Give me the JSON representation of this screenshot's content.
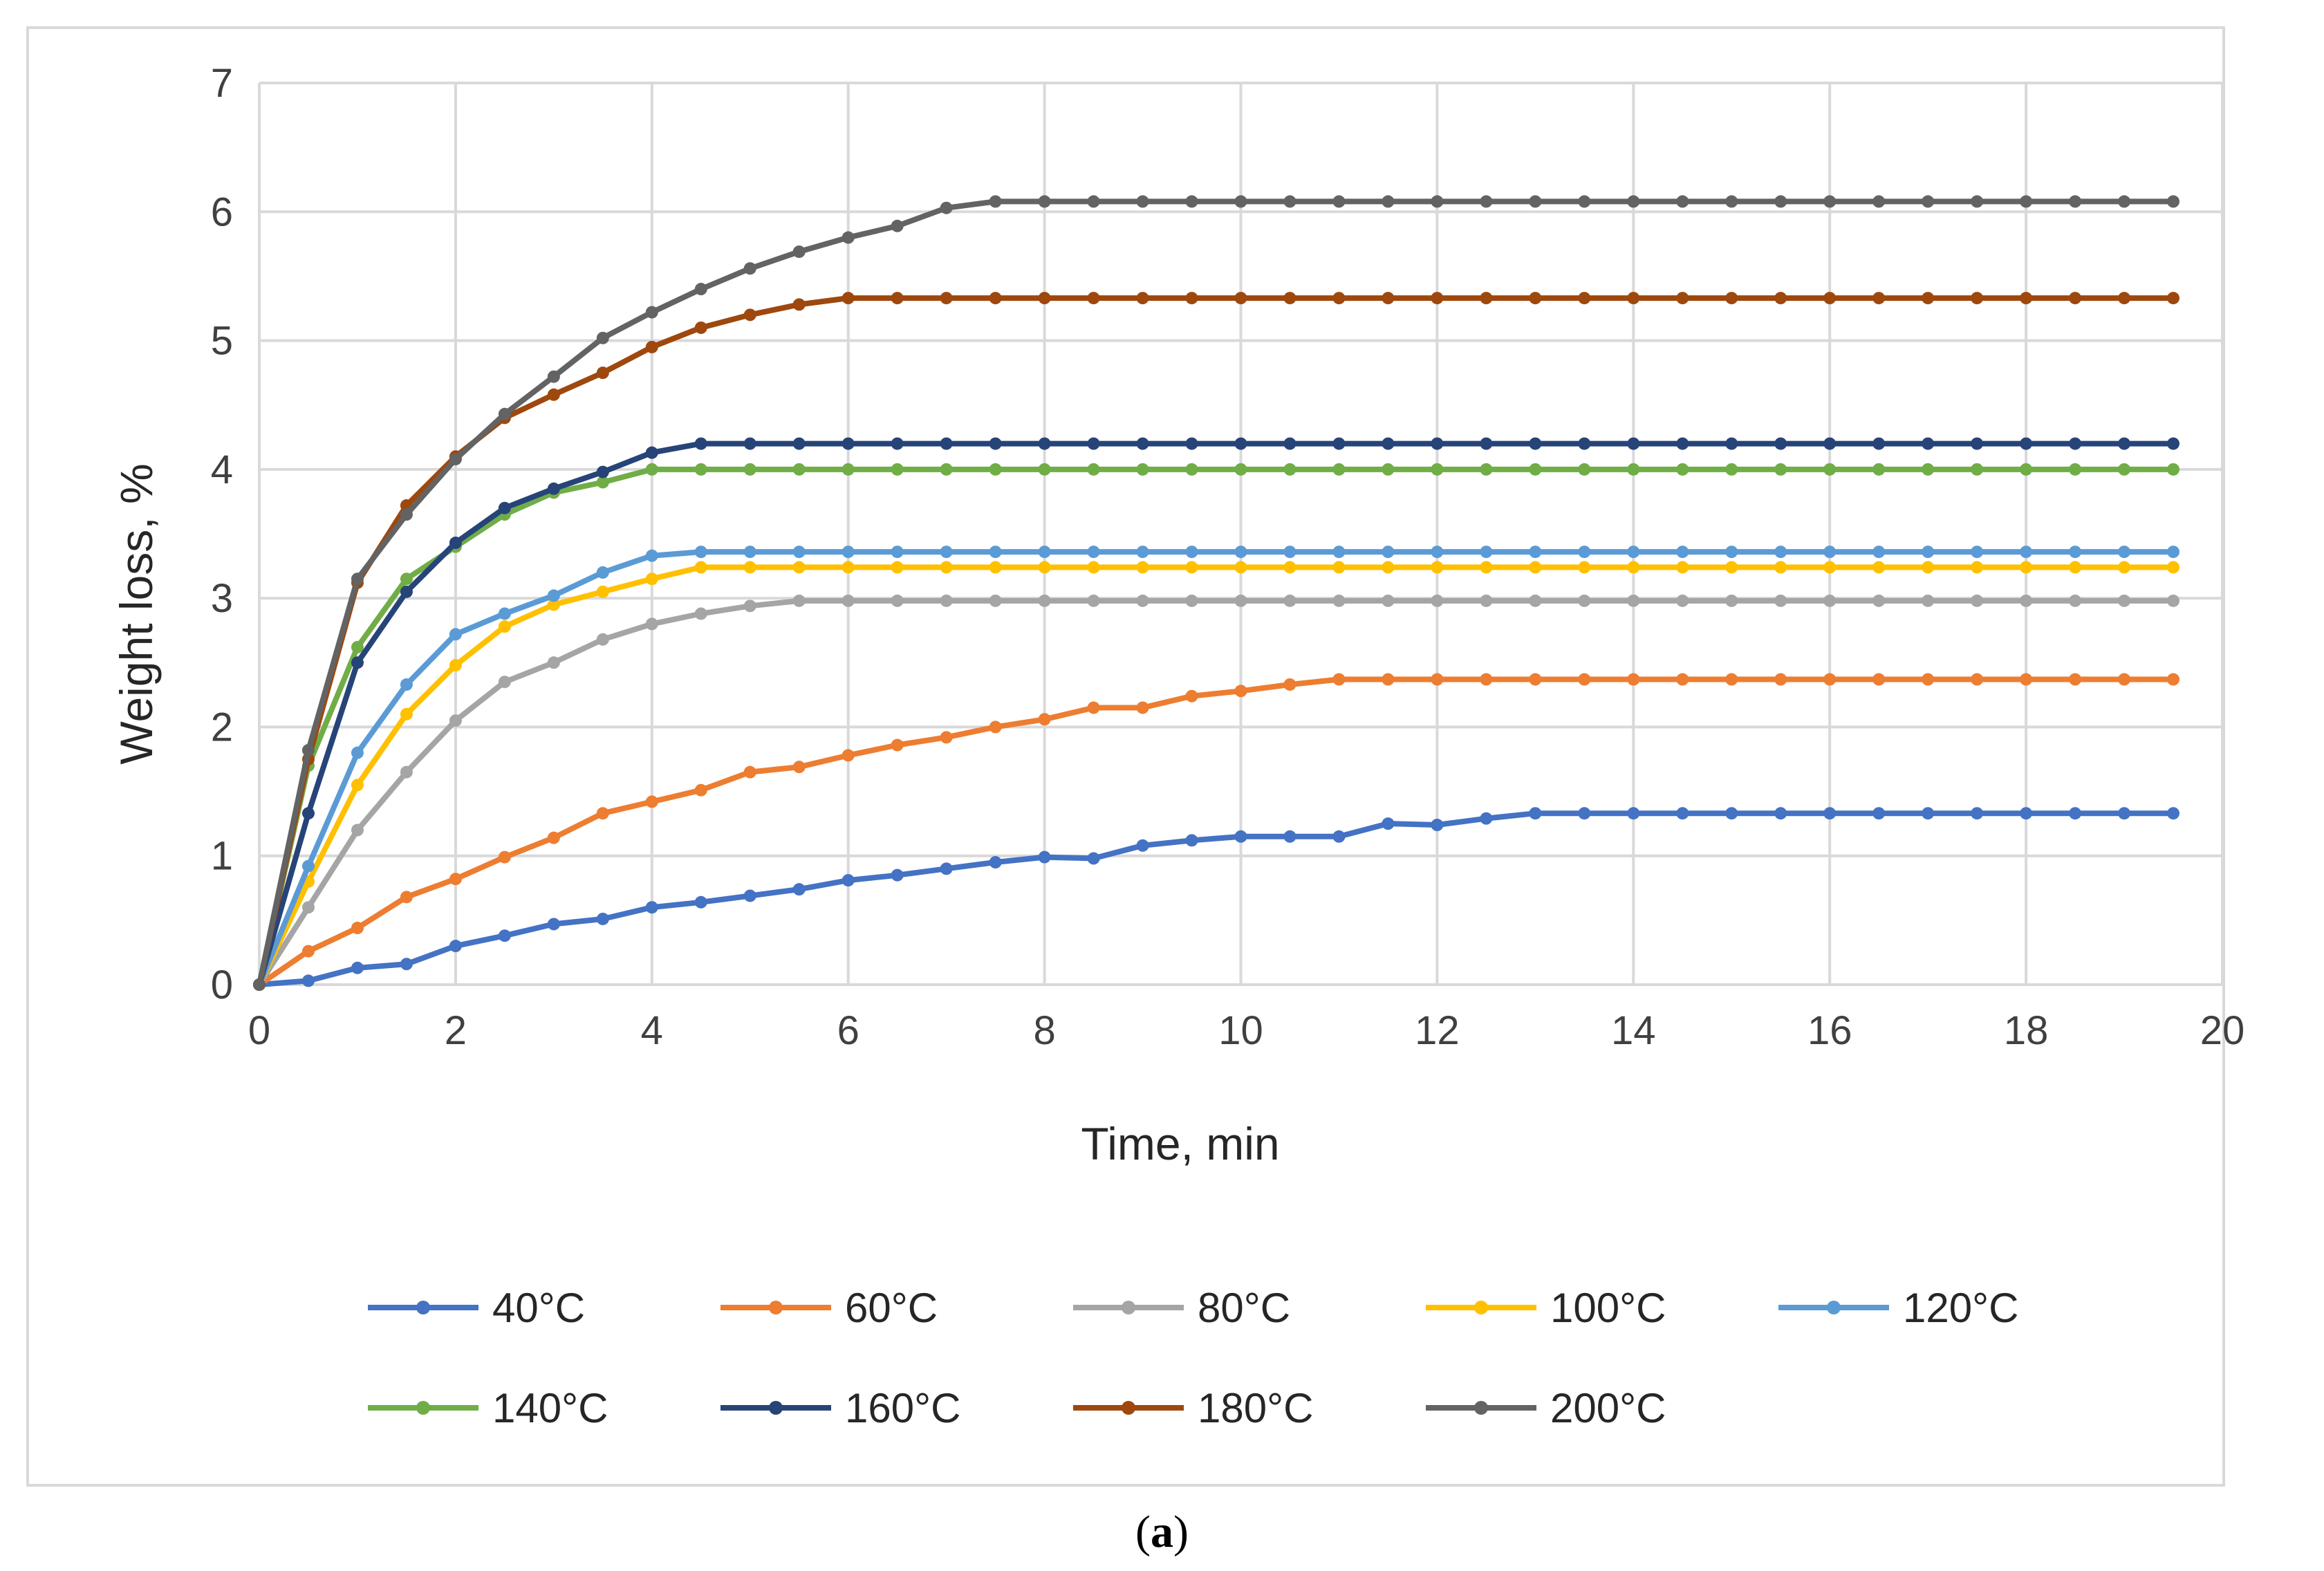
{
  "chart_data": {
    "type": "line",
    "title": "",
    "xlabel": "Time, min",
    "ylabel": "Weight loss, %",
    "xlim": [
      0,
      20
    ],
    "ylim": [
      0,
      7
    ],
    "xticks": [
      0,
      2,
      4,
      6,
      8,
      10,
      12,
      14,
      16,
      18,
      20
    ],
    "yticks": [
      0,
      1,
      2,
      3,
      4,
      5,
      6,
      7
    ],
    "grid": true,
    "legend_position": "bottom",
    "x": [
      0,
      0.5,
      1,
      1.5,
      2,
      2.5,
      3,
      3.5,
      4,
      4.5,
      5,
      5.5,
      6,
      6.5,
      7,
      7.5,
      8,
      8.5,
      9,
      9.5,
      10,
      10.5,
      11,
      11.5,
      12,
      12.5,
      13,
      13.5,
      14,
      14.5,
      15,
      15.5,
      16,
      16.5,
      17,
      17.5,
      18,
      18.5,
      19,
      19.5
    ],
    "series": [
      {
        "name": "40°C",
        "color": "#4472c4",
        "values": [
          0,
          0.03,
          0.13,
          0.16,
          0.3,
          0.38,
          0.47,
          0.51,
          0.6,
          0.64,
          0.69,
          0.74,
          0.81,
          0.85,
          0.9,
          0.95,
          0.99,
          0.98,
          1.08,
          1.12,
          1.15,
          1.15,
          1.15,
          1.25,
          1.24,
          1.29,
          1.33,
          1.33,
          1.33,
          1.33,
          1.33,
          1.33,
          1.33,
          1.33,
          1.33,
          1.33,
          1.33,
          1.33,
          1.33,
          1.33
        ]
      },
      {
        "name": "60°C",
        "color": "#ed7d31",
        "values": [
          0,
          0.26,
          0.44,
          0.68,
          0.82,
          0.99,
          1.14,
          1.33,
          1.42,
          1.51,
          1.65,
          1.69,
          1.78,
          1.86,
          1.92,
          2.0,
          2.06,
          2.15,
          2.15,
          2.24,
          2.28,
          2.33,
          2.37,
          2.37,
          2.37,
          2.37,
          2.37,
          2.37,
          2.37,
          2.37,
          2.37,
          2.37,
          2.37,
          2.37,
          2.37,
          2.37,
          2.37,
          2.37,
          2.37,
          2.37
        ]
      },
      {
        "name": "80°C",
        "color": "#a5a5a5",
        "values": [
          0,
          0.6,
          1.2,
          1.65,
          2.05,
          2.35,
          2.5,
          2.68,
          2.8,
          2.88,
          2.94,
          2.98,
          2.98,
          2.98,
          2.98,
          2.98,
          2.98,
          2.98,
          2.98,
          2.98,
          2.98,
          2.98,
          2.98,
          2.98,
          2.98,
          2.98,
          2.98,
          2.98,
          2.98,
          2.98,
          2.98,
          2.98,
          2.98,
          2.98,
          2.98,
          2.98,
          2.98,
          2.98,
          2.98,
          2.98
        ]
      },
      {
        "name": "100°C",
        "color": "#ffc000",
        "values": [
          0,
          0.8,
          1.55,
          2.1,
          2.48,
          2.78,
          2.95,
          3.05,
          3.15,
          3.24,
          3.24,
          3.24,
          3.24,
          3.24,
          3.24,
          3.24,
          3.24,
          3.24,
          3.24,
          3.24,
          3.24,
          3.24,
          3.24,
          3.24,
          3.24,
          3.24,
          3.24,
          3.24,
          3.24,
          3.24,
          3.24,
          3.24,
          3.24,
          3.24,
          3.24,
          3.24,
          3.24,
          3.24,
          3.24,
          3.24
        ]
      },
      {
        "name": "120°C",
        "color": "#5b9bd5",
        "values": [
          0,
          0.92,
          1.8,
          2.33,
          2.72,
          2.88,
          3.02,
          3.2,
          3.33,
          3.36,
          3.36,
          3.36,
          3.36,
          3.36,
          3.36,
          3.36,
          3.36,
          3.36,
          3.36,
          3.36,
          3.36,
          3.36,
          3.36,
          3.36,
          3.36,
          3.36,
          3.36,
          3.36,
          3.36,
          3.36,
          3.36,
          3.36,
          3.36,
          3.36,
          3.36,
          3.36,
          3.36,
          3.36,
          3.36,
          3.36
        ]
      },
      {
        "name": "140°C",
        "color": "#70ad47",
        "values": [
          0,
          1.7,
          2.62,
          3.15,
          3.4,
          3.65,
          3.82,
          3.9,
          4.0,
          4.0,
          4.0,
          4.0,
          4.0,
          4.0,
          4.0,
          4.0,
          4.0,
          4.0,
          4.0,
          4.0,
          4.0,
          4.0,
          4.0,
          4.0,
          4.0,
          4.0,
          4.0,
          4.0,
          4.0,
          4.0,
          4.0,
          4.0,
          4.0,
          4.0,
          4.0,
          4.0,
          4.0,
          4.0,
          4.0,
          4.0
        ]
      },
      {
        "name": "160°C",
        "color": "#264478",
        "values": [
          0,
          1.33,
          2.5,
          3.05,
          3.43,
          3.7,
          3.85,
          3.98,
          4.13,
          4.2,
          4.2,
          4.2,
          4.2,
          4.2,
          4.2,
          4.2,
          4.2,
          4.2,
          4.2,
          4.2,
          4.2,
          4.2,
          4.2,
          4.2,
          4.2,
          4.2,
          4.2,
          4.2,
          4.2,
          4.2,
          4.2,
          4.2,
          4.2,
          4.2,
          4.2,
          4.2,
          4.2,
          4.2,
          4.2,
          4.2
        ]
      },
      {
        "name": "180°C",
        "color": "#9e480e",
        "values": [
          0,
          1.75,
          3.12,
          3.72,
          4.1,
          4.4,
          4.58,
          4.75,
          4.95,
          5.1,
          5.2,
          5.28,
          5.33,
          5.33,
          5.33,
          5.33,
          5.33,
          5.33,
          5.33,
          5.33,
          5.33,
          5.33,
          5.33,
          5.33,
          5.33,
          5.33,
          5.33,
          5.33,
          5.33,
          5.33,
          5.33,
          5.33,
          5.33,
          5.33,
          5.33,
          5.33,
          5.33,
          5.33,
          5.33,
          5.33
        ]
      },
      {
        "name": "200°C",
        "color": "#636363",
        "values": [
          0,
          1.82,
          3.15,
          3.65,
          4.08,
          4.43,
          4.72,
          5.02,
          5.22,
          5.4,
          5.56,
          5.69,
          5.8,
          5.89,
          6.03,
          6.08,
          6.08,
          6.08,
          6.08,
          6.08,
          6.08,
          6.08,
          6.08,
          6.08,
          6.08,
          6.08,
          6.08,
          6.08,
          6.08,
          6.08,
          6.08,
          6.08,
          6.08,
          6.08,
          6.08,
          6.08,
          6.08,
          6.08,
          6.08,
          6.08
        ]
      }
    ]
  },
  "caption": {
    "open": "(",
    "letter": "a",
    "close": ")"
  }
}
